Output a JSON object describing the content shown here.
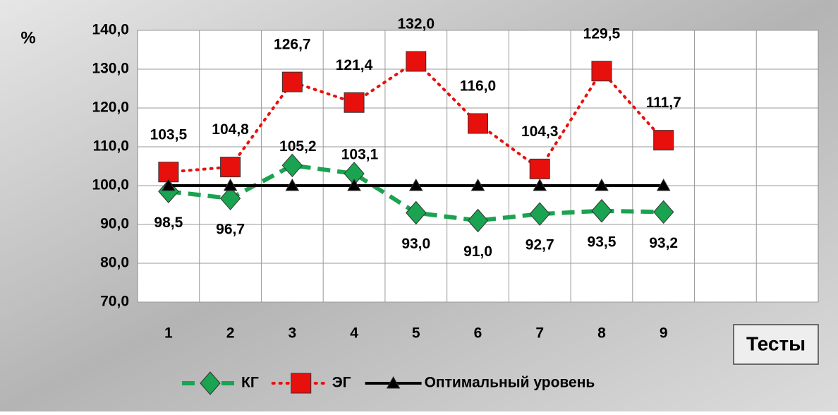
{
  "chart_data": {
    "type": "line",
    "y_label": "%",
    "x_label": "Тесты",
    "categories": [
      "1",
      "2",
      "3",
      "4",
      "5",
      "6",
      "7",
      "8",
      "9",
      null,
      null
    ],
    "series": [
      {
        "name": "КГ",
        "color": "#1aa350",
        "style": "dashed",
        "marker": "diamond",
        "values": [
          98.5,
          96.7,
          105.2,
          103.1,
          93.0,
          91.0,
          92.7,
          93.5,
          93.2,
          null,
          null
        ],
        "value_labels": [
          "98,5",
          "96,7",
          "105,2",
          "103,1",
          "93,0",
          "91,0",
          "92,7",
          "93,5",
          "93,2",
          null,
          null
        ]
      },
      {
        "name": "ЭГ",
        "color": "#e8100c",
        "style": "dotted",
        "marker": "square",
        "values": [
          103.5,
          104.8,
          126.7,
          121.4,
          132.0,
          116.0,
          104.3,
          129.5,
          111.7,
          null,
          null
        ],
        "value_labels": [
          "103,5",
          "104,8",
          "126,7",
          "121,4",
          "132,0",
          "116,0",
          "104,3",
          "129,5",
          "111,7",
          null,
          null
        ]
      },
      {
        "name": "Оптимальный уровень",
        "color": "#000000",
        "style": "solid",
        "marker": "triangle",
        "values": [
          100,
          100,
          100,
          100,
          100,
          100,
          100,
          100,
          100,
          null,
          null
        ]
      }
    ],
    "ylim": [
      70,
      140
    ],
    "yticks": [
      {
        "value": 70,
        "label": "70,0"
      },
      {
        "value": 80,
        "label": "80,0"
      },
      {
        "value": 90,
        "label": "90,0"
      },
      {
        "value": 100,
        "label": "100,0"
      },
      {
        "value": 110,
        "label": "110,0"
      },
      {
        "value": 120,
        "label": "120,0"
      },
      {
        "value": 130,
        "label": "130,0"
      },
      {
        "value": 140,
        "label": "140,0"
      }
    ],
    "grid": true,
    "legend": "bottom"
  }
}
